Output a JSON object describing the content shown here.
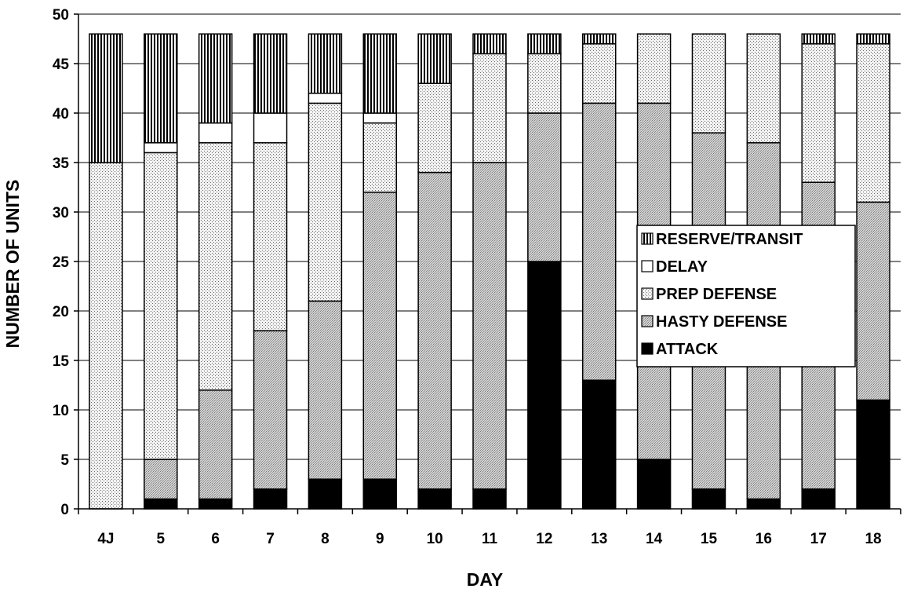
{
  "chart_data": {
    "type": "bar",
    "stacked": true,
    "title": "",
    "xlabel": "DAY",
    "ylabel": "NUMBER OF UNITS",
    "ylim": [
      0,
      50
    ],
    "yticks": [
      0,
      5,
      10,
      15,
      20,
      25,
      30,
      35,
      40,
      45,
      50
    ],
    "grid": true,
    "legend_position": "right",
    "categories": [
      "4J",
      "5",
      "6",
      "7",
      "8",
      "9",
      "10",
      "11",
      "12",
      "13",
      "14",
      "15",
      "16",
      "17",
      "18"
    ],
    "series": [
      {
        "name": "ATTACK",
        "pattern": "solid",
        "color": "#000000",
        "values": [
          0,
          1,
          1,
          2,
          3,
          3,
          2,
          2,
          25,
          13,
          5,
          2,
          1,
          2,
          11
        ]
      },
      {
        "name": "HASTY DEFENSE",
        "pattern": "dense-gray",
        "color": "#c8c8c8",
        "values": [
          0,
          4,
          11,
          16,
          18,
          29,
          32,
          33,
          15,
          28,
          36,
          36,
          36,
          31,
          20
        ]
      },
      {
        "name": "PREP DEFENSE",
        "pattern": "sparse-dots",
        "color": "#e6e6e6",
        "values": [
          35,
          31,
          25,
          19,
          20,
          7,
          9,
          11,
          6,
          6,
          7,
          10,
          11,
          14,
          16
        ]
      },
      {
        "name": "DELAY",
        "pattern": "blank",
        "color": "#ffffff",
        "values": [
          0,
          1,
          2,
          3,
          1,
          1,
          0,
          0,
          0,
          0,
          0,
          0,
          0,
          0,
          0
        ]
      },
      {
        "name": "RESERVE/TRANSIT",
        "pattern": "vertical-lines",
        "color": "#000000",
        "values": [
          13,
          11,
          9,
          8,
          6,
          8,
          5,
          2,
          2,
          1,
          0,
          0,
          0,
          1,
          1
        ]
      }
    ],
    "legend_order": [
      "RESERVE/TRANSIT",
      "DELAY",
      "PREP DEFENSE",
      "HASTY DEFENSE",
      "ATTACK"
    ]
  }
}
